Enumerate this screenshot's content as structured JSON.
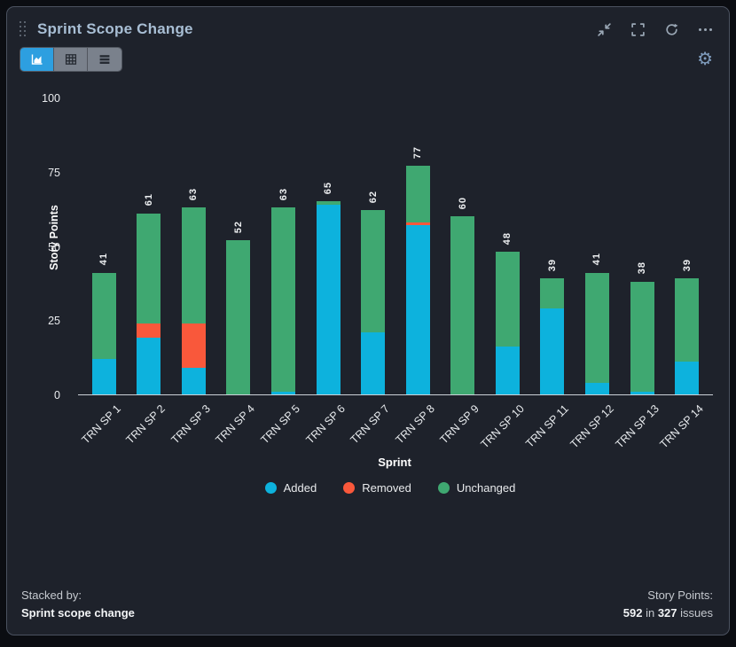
{
  "header": {
    "title": "Sprint Scope Change",
    "icons": [
      "drag-handle-icon",
      "collapse-icon",
      "fullscreen-icon",
      "refresh-icon",
      "more-options-icon"
    ]
  },
  "toolbar": {
    "view_buttons": [
      "chart-view",
      "table-view",
      "rows-view"
    ],
    "active_view": "chart-view",
    "settings_icon": "gear-icon"
  },
  "chart_data": {
    "type": "bar",
    "stacked": true,
    "title": "Sprint Scope Change",
    "xlabel": "Sprint",
    "ylabel": "Story Points",
    "ylim": [
      0,
      100
    ],
    "yticks": [
      0,
      25,
      50,
      75,
      100
    ],
    "grid": false,
    "legend_position": "bottom",
    "categories": [
      "TRN SP 1",
      "TRN SP 2",
      "TRN SP 3",
      "TRN SP 4",
      "TRN SP 5",
      "TRN SP 6",
      "TRN SP 7",
      "TRN SP 8",
      "TRN SP 9",
      "TRN SP 10",
      "TRN SP 11",
      "TRN SP 12",
      "TRN SP 13",
      "TRN SP 14"
    ],
    "series": [
      {
        "name": "Added",
        "color": "#0db2dd",
        "values": [
          12,
          19,
          9,
          0,
          1,
          64,
          21,
          57,
          0,
          16,
          29,
          4,
          1,
          11
        ]
      },
      {
        "name": "Removed",
        "color": "#f9583b",
        "values": [
          0,
          5,
          15,
          0,
          0,
          0,
          0,
          1,
          0,
          0,
          0,
          0,
          0,
          0
        ]
      },
      {
        "name": "Unchanged",
        "color": "#3fa871",
        "values": [
          29,
          37,
          39,
          52,
          62,
          1,
          41,
          19,
          60,
          32,
          10,
          37,
          37,
          28
        ]
      }
    ],
    "totals": [
      41,
      61,
      63,
      52,
      63,
      65,
      62,
      77,
      60,
      48,
      39,
      41,
      38,
      39
    ]
  },
  "footer": {
    "stacked_by_label": "Stacked by:",
    "stacked_by_value": "Sprint scope change",
    "story_points_label": "Story Points:",
    "story_points_total": "592",
    "story_points_in": " in ",
    "story_points_issues": "327",
    "story_points_suffix": " issues"
  },
  "colors": {
    "panel_bg": "#1e222b",
    "accent_active": "#2d9fe0",
    "added": "#0db2dd",
    "removed": "#f9583b",
    "unchanged": "#3fa871"
  }
}
